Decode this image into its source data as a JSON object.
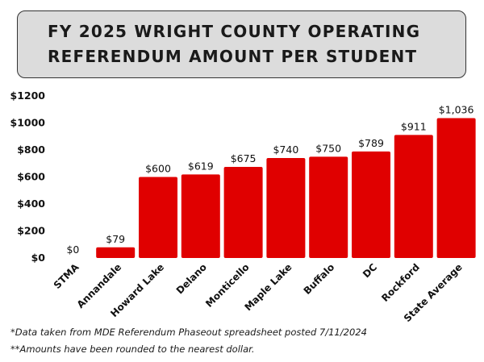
{
  "title": {
    "line1": "FY 2025 WRIGHT COUNTY OPERATING",
    "line2": "REFERENDUM AMOUNT PER STUDENT"
  },
  "chart_data": {
    "type": "bar",
    "categories": [
      "STMA",
      "Annandale",
      "Howard Lake",
      "Delano",
      "Monticello",
      "Maple Lake",
      "Buffalo",
      "DC",
      "Rockford",
      "State Average"
    ],
    "values": [
      0,
      79,
      600,
      619,
      675,
      740,
      750,
      789,
      911,
      1036
    ],
    "data_labels": [
      "$0",
      "$79",
      "$600",
      "$619",
      "$675",
      "$740",
      "$750",
      "$789",
      "$911",
      "$1,036"
    ],
    "yticks": [
      "$0",
      "$200",
      "$400",
      "$600",
      "$800",
      "$1000",
      "$1200"
    ],
    "ylim": [
      0,
      1200
    ],
    "bar_color": "#e00000",
    "grid": false,
    "legend": false
  },
  "footnotes": [
    "*Data taken from MDE Referendum Phaseout spreadsheet posted 7/11/2024",
    "**Amounts have been rounded to the nearest dollar."
  ]
}
